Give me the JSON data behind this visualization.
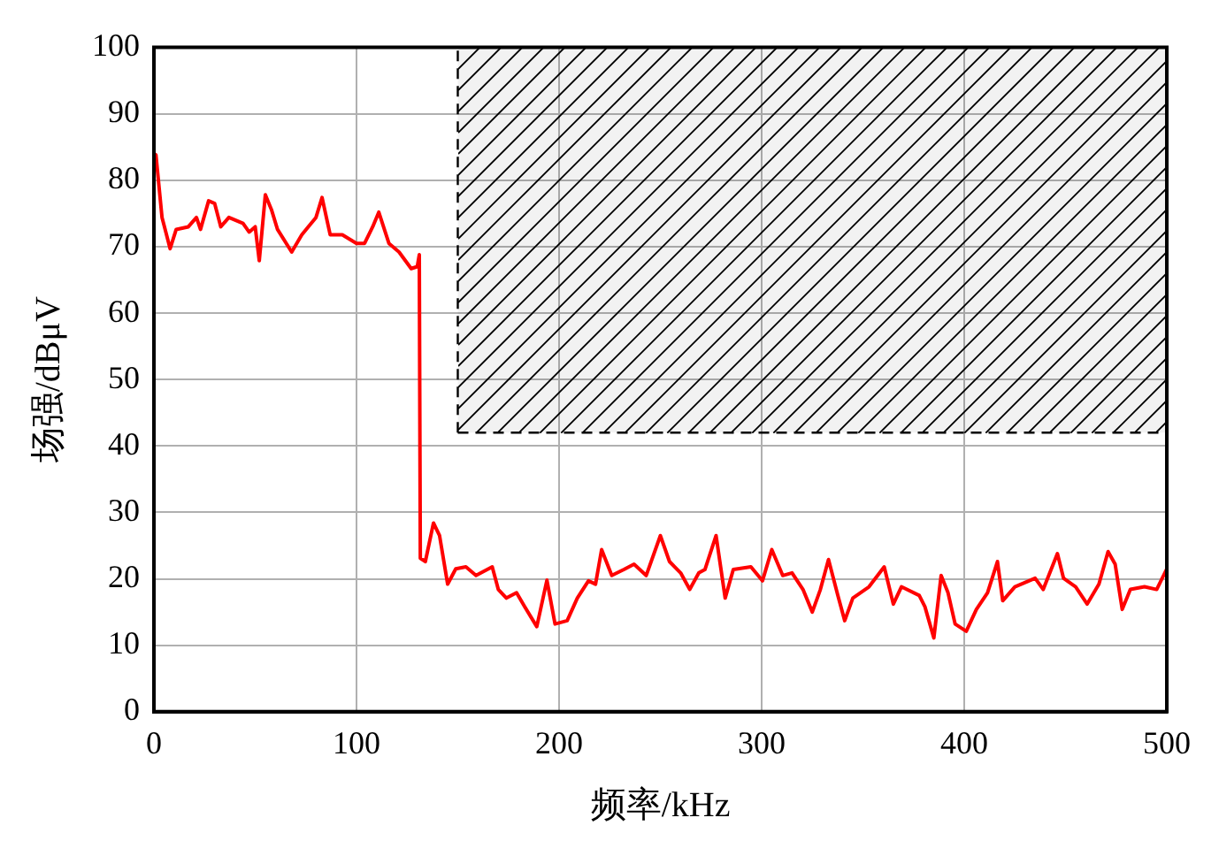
{
  "chart_data": {
    "type": "line",
    "xlabel": "频率/kHz",
    "ylabel": "场强/dBμV",
    "xlim": [
      0,
      500
    ],
    "ylim": [
      0,
      100
    ],
    "xticks": [
      0,
      100,
      200,
      300,
      400,
      500
    ],
    "yticks": [
      0,
      10,
      20,
      30,
      40,
      50,
      60,
      70,
      80,
      90,
      100
    ],
    "grid": true,
    "legend": false,
    "marker": "none",
    "line_style": "solid",
    "series": [
      {
        "color": "#ff0000",
        "x": [
          0,
          1,
          4,
          8,
          11,
          17,
          21,
          23,
          27,
          30,
          33,
          37,
          44,
          47,
          50,
          52,
          55,
          58,
          61,
          68,
          73,
          80,
          83,
          87,
          93,
          100,
          104,
          108,
          111,
          116,
          121,
          127,
          130,
          131,
          131.5,
          134,
          138,
          141,
          145,
          149,
          154,
          159,
          167,
          170,
          174,
          179,
          183,
          189,
          194,
          198,
          204,
          209,
          214.5,
          218,
          221,
          226,
          232,
          237,
          243,
          250,
          254.5,
          260,
          264.5,
          269,
          272,
          277.5,
          282,
          286,
          294.7,
          300.4,
          305,
          310.4,
          315,
          320.4,
          325,
          329,
          333,
          337.6,
          341,
          345,
          353,
          360.5,
          365,
          369,
          377.8,
          380.6,
          385,
          388.6,
          392,
          395.5,
          401,
          406,
          411.5,
          416.4,
          419,
          425,
          435,
          439,
          446,
          449,
          455,
          460.7,
          466.5,
          471,
          474.5,
          478,
          482,
          489,
          495,
          500
        ],
        "values": [
          84,
          83.8,
          74.4,
          69.7,
          72.6,
          73,
          74.4,
          72.6,
          76.9,
          76.5,
          73,
          74.4,
          73.5,
          72.2,
          73,
          67.9,
          77.8,
          75.6,
          72.6,
          69.2,
          71.8,
          74.4,
          77.4,
          71.8,
          71.8,
          70.5,
          70.5,
          73,
          75.2,
          70.5,
          69.2,
          66.7,
          67,
          68.8,
          23.1,
          22.6,
          28.4,
          26.5,
          19.2,
          21.5,
          21.8,
          20.5,
          21.8,
          18.4,
          17.1,
          17.9,
          15.8,
          12.8,
          19.8,
          13.2,
          13.7,
          17.1,
          19.7,
          19.2,
          24.4,
          20.5,
          21.4,
          22.2,
          20.5,
          26.5,
          22.6,
          20.9,
          18.4,
          20.9,
          21.4,
          26.5,
          17.1,
          21.4,
          21.8,
          19.7,
          24.4,
          20.5,
          20.9,
          18.4,
          15,
          18.4,
          22.9,
          17.5,
          13.7,
          17.1,
          18.8,
          21.8,
          16.2,
          18.8,
          17.5,
          15.8,
          11.1,
          20.5,
          17.9,
          13.2,
          12.1,
          15.4,
          17.9,
          22.6,
          16.7,
          18.8,
          20.1,
          18.4,
          23.8,
          20.1,
          18.8,
          16.2,
          19.2,
          24.1,
          22.2,
          15.4,
          18.4,
          18.8,
          18.4,
          21.5
        ]
      }
    ],
    "ref_lines": [
      {
        "axis": "x",
        "value": 150,
        "line_style": "dashed",
        "color": "#000000"
      },
      {
        "axis": "y",
        "value": 42,
        "line_style": "dashed",
        "color": "#000000"
      }
    ],
    "bands": [
      {
        "axis": "y",
        "from": 42,
        "to": 100,
        "color": "#000000"
      }
    ]
  }
}
